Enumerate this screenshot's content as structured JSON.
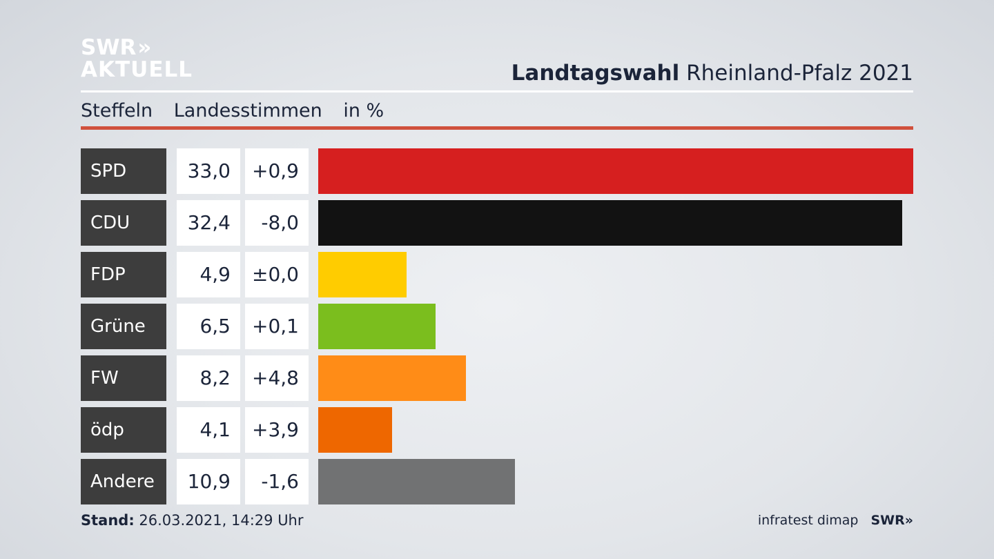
{
  "logo": {
    "line1": "SWR",
    "arrows": "»",
    "line2": "AKTUELL"
  },
  "header": {
    "title_bold": "Landtagswahl",
    "title_rest": "Rheinland-Pfalz 2021"
  },
  "subheader": {
    "place": "Steffeln",
    "type": "Landesstimmen",
    "unit": "in %"
  },
  "chart_data": {
    "type": "bar",
    "orientation": "horizontal",
    "categories": [
      "SPD",
      "CDU",
      "FDP",
      "Grüne",
      "FW",
      "ödp",
      "Andere"
    ],
    "values": [
      33.0,
      32.4,
      4.9,
      6.5,
      8.2,
      4.1,
      10.9
    ],
    "value_labels": [
      "33,0",
      "32,4",
      "4,9",
      "6,5",
      "8,2",
      "4,1",
      "10,9"
    ],
    "change_labels": [
      "+0,9",
      "-8,0",
      "±0,0",
      "+0,1",
      "+4,8",
      "+3,9",
      "-1,6"
    ],
    "changes": [
      0.9,
      -8.0,
      0.0,
      0.1,
      4.8,
      3.9,
      -1.6
    ],
    "colors": [
      "#d61f1f",
      "#121212",
      "#ffcc00",
      "#7bbe1e",
      "#ff8c17",
      "#ee6700",
      "#717273"
    ],
    "xlim": [
      0,
      33.0
    ],
    "grid": false,
    "legend": "none"
  },
  "footer": {
    "stand_label": "Stand:",
    "stand_value": "26.03.2021, 14:29 Uhr",
    "source": "infratest dimap",
    "brand": "SWR»"
  }
}
